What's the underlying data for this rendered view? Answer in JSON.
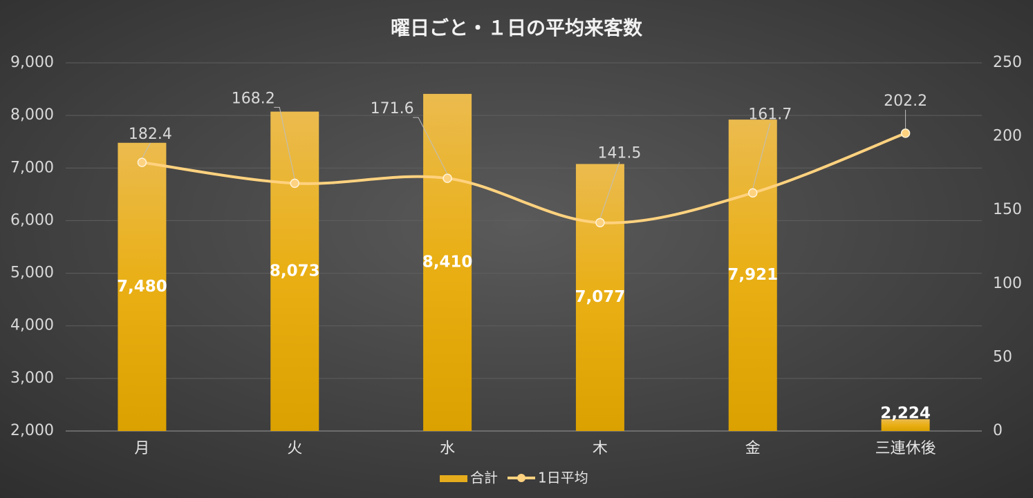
{
  "chart_data": {
    "type": "bar_line",
    "title": "曜日ごと・１日の平均来客数",
    "categories": [
      "月",
      "火",
      "水",
      "木",
      "金",
      "三連休後"
    ],
    "series": [
      {
        "name": "合計",
        "type": "bar",
        "color": "#e6ac1c",
        "values": [
          7480,
          8073,
          8410,
          7077,
          7921,
          2224
        ],
        "value_labels": [
          "7,480",
          "8,073",
          "8,410",
          "7,077",
          "7,921",
          "2,224"
        ]
      },
      {
        "name": "1日平均",
        "type": "line",
        "axis": "y2",
        "color": "#ffd27f",
        "values": [
          182.4,
          168.2,
          171.6,
          141.5,
          161.7,
          202.2
        ]
      }
    ],
    "ylim": [
      2000,
      9000
    ],
    "yticks": [
      {
        "value": 2000,
        "label": "2,000"
      },
      {
        "value": 3000,
        "label": "3,000"
      },
      {
        "value": 4000,
        "label": "4,000"
      },
      {
        "value": 5000,
        "label": "5,000"
      },
      {
        "value": 6000,
        "label": "6,000"
      },
      {
        "value": 7000,
        "label": "7,000"
      },
      {
        "value": 8000,
        "label": "8,000"
      },
      {
        "value": 9000,
        "label": "9,000"
      }
    ],
    "y2lim": [
      0,
      250
    ],
    "y2ticks": [
      0,
      50,
      100,
      150,
      200,
      250
    ],
    "grid": true,
    "legend": "bottom"
  }
}
